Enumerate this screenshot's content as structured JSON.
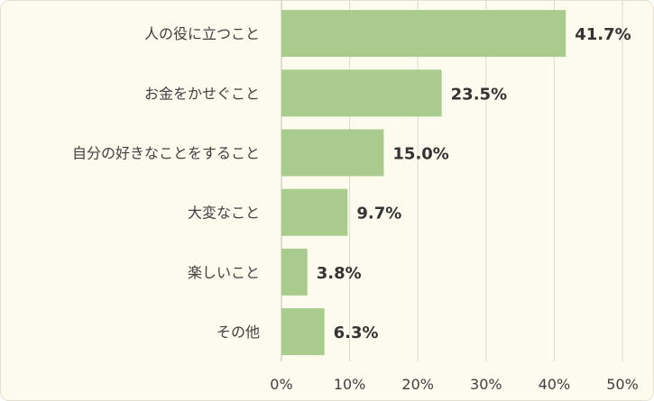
{
  "chart_data": {
    "type": "bar",
    "orientation": "horizontal",
    "categories": [
      "人の役に立つこと",
      "お金をかせぐこと",
      "自分の好きなことをすること",
      "大変なこと",
      "楽しいこと",
      "その他"
    ],
    "values": [
      41.7,
      23.5,
      15.0,
      9.7,
      3.8,
      6.3
    ],
    "value_labels": [
      "41.7%",
      "23.5%",
      "15.0%",
      "9.7%",
      "3.8%",
      "6.3%"
    ],
    "xlim": [
      0,
      50
    ],
    "x_ticks": [
      0,
      10,
      20,
      30,
      40,
      50
    ],
    "x_tick_labels": [
      "0%",
      "10%",
      "20%",
      "30%",
      "40%",
      "50%"
    ],
    "grid": true,
    "colors": {
      "bar": "#a9cc8e",
      "grid": "#d9d9d9",
      "background": "#fdfbed"
    }
  }
}
